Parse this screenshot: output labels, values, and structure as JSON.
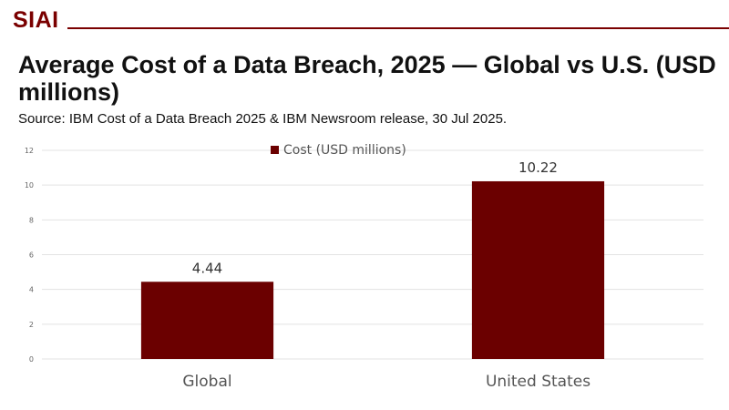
{
  "brand": {
    "logo_text": "SIAI",
    "color": "#7a0000"
  },
  "header": {
    "title": "Average Cost of a Data Breach, 2025 — Global vs U.S. (USD millions)",
    "subtitle": "Source: IBM Cost of a Data Breach 2025 & IBM Newsroom release, 30 Jul 2025."
  },
  "chart_data": {
    "type": "bar",
    "categories": [
      "Global",
      "United States"
    ],
    "series": [
      {
        "name": "Cost (USD millions)",
        "values": [
          4.44,
          10.22
        ],
        "color": "#6b0000"
      }
    ],
    "data_labels": [
      "4.44",
      "10.22"
    ],
    "ylim": [
      0,
      12
    ],
    "yticks": [
      0,
      2,
      4,
      6,
      8,
      10,
      12
    ],
    "grid": true,
    "legend_position": "top-center",
    "xlabel": "",
    "ylabel": ""
  }
}
